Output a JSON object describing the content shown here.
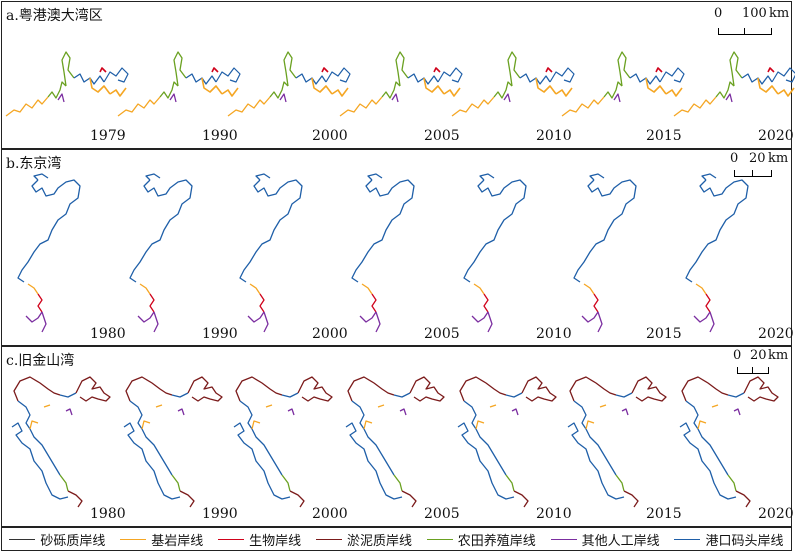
{
  "panels": [
    {
      "id": "a",
      "title": "a.粤港澳大湾区",
      "years": [
        "1979",
        "1990",
        "2000",
        "2005",
        "2010",
        "2015",
        "2020"
      ],
      "scale": {
        "zero": "0",
        "value": "100",
        "unit": "km"
      }
    },
    {
      "id": "b",
      "title": "b.东京湾",
      "years": [
        "1980",
        "1990",
        "2000",
        "2005",
        "2010",
        "2015",
        "2020"
      ],
      "scale": {
        "zero": "0",
        "value": "20",
        "unit": "km"
      }
    },
    {
      "id": "c",
      "title": "c.旧金山湾",
      "years": [
        "1980",
        "1990",
        "2000",
        "2005",
        "2010",
        "2015",
        "2020"
      ],
      "scale": {
        "zero": "0",
        "value": "20",
        "unit": "km"
      }
    }
  ],
  "legend": [
    {
      "label": "砂砾质岸线",
      "color": "#333333"
    },
    {
      "label": "基岩岸线",
      "color": "#f5a623"
    },
    {
      "label": "生物岸线",
      "color": "#d0021b"
    },
    {
      "label": "淤泥质岸线",
      "color": "#7b1b1b"
    },
    {
      "label": "农田养殖岸线",
      "color": "#6aa121"
    },
    {
      "label": "其他人工岸线",
      "color": "#7b2ea0"
    },
    {
      "label": "港口码头岸线",
      "color": "#1f5fa8"
    }
  ]
}
